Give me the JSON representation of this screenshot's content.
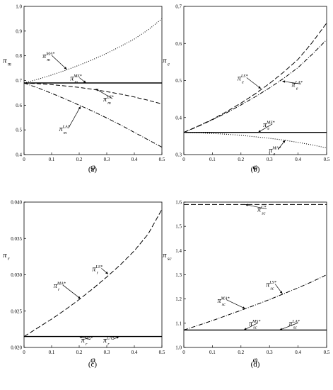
{
  "chart_data": [
    {
      "id": "a",
      "type": "line",
      "panel_label": "(a)",
      "xlabel": "φ",
      "ylabel": "π",
      "ylabel_sub": "m",
      "xlim": [
        0,
        0.5
      ],
      "ylim": [
        0.4,
        1.0
      ],
      "xticks": [
        "0",
        "0.1",
        "0.2",
        "0.3",
        "0.4",
        "0.5"
      ],
      "yticks": [
        "0.4",
        "0.5",
        "0.6",
        "0.7",
        "0.8",
        "0.9",
        "1.0"
      ],
      "x": [
        0,
        0.05,
        0.1,
        0.15,
        0.2,
        0.25,
        0.3,
        0.35,
        0.4,
        0.45,
        0.5
      ],
      "series": [
        {
          "style": "dotted",
          "values": [
            0.69,
            0.705,
            0.722,
            0.741,
            0.762,
            0.785,
            0.81,
            0.838,
            0.868,
            0.905,
            0.95
          ]
        },
        {
          "style": "solid",
          "values": [
            0.69,
            0.69,
            0.69,
            0.69,
            0.69,
            0.69,
            0.69,
            0.69,
            0.69,
            0.69,
            0.69
          ]
        },
        {
          "style": "dashed",
          "values": [
            0.69,
            0.687,
            0.683,
            0.678,
            0.672,
            0.664,
            0.655,
            0.645,
            0.633,
            0.62,
            0.605
          ]
        },
        {
          "style": "dashdot",
          "values": [
            0.69,
            0.67,
            0.648,
            0.625,
            0.6,
            0.575,
            0.548,
            0.52,
            0.49,
            0.46,
            0.43
          ]
        }
      ],
      "annotations": [
        {
          "base": "π",
          "sub": "m",
          "sup": "MA*",
          "tx": 0.08,
          "ty": 0.79,
          "x": 0.155,
          "y": 0.745
        },
        {
          "base": "π",
          "sub": "m",
          "sup": "MS*",
          "tx": 0.18,
          "ty": 0.7,
          "x": 0.225,
          "y": 0.69
        },
        {
          "base": "π",
          "sub": "m",
          "sup": "LS*",
          "tx": 0.3,
          "ty": 0.615,
          "x": 0.26,
          "y": 0.666
        },
        {
          "base": "π",
          "sub": "m",
          "sup": "LA*",
          "tx": 0.14,
          "ty": 0.495,
          "x": 0.205,
          "y": 0.595
        }
      ]
    },
    {
      "id": "b",
      "type": "line",
      "panel_label": "(b)",
      "xlabel": "φ",
      "ylabel": "π",
      "ylabel_sub": "e",
      "xlim": [
        0,
        0.5
      ],
      "ylim": [
        0.3,
        0.7
      ],
      "xticks": [
        "0",
        "0.1",
        "0.2",
        "0.3",
        "0.4",
        "0.5"
      ],
      "yticks": [
        "0.3",
        "0.4",
        "0.5",
        "0.6",
        "0.7"
      ],
      "x": [
        0,
        0.05,
        0.1,
        0.15,
        0.2,
        0.25,
        0.3,
        0.35,
        0.4,
        0.45,
        0.5
      ],
      "series": [
        {
          "style": "longdash",
          "values": [
            0.36,
            0.377,
            0.395,
            0.416,
            0.439,
            0.464,
            0.492,
            0.523,
            0.557,
            0.603,
            0.655
          ]
        },
        {
          "style": "dashdot",
          "values": [
            0.36,
            0.376,
            0.394,
            0.413,
            0.434,
            0.456,
            0.48,
            0.506,
            0.535,
            0.571,
            0.61
          ]
        },
        {
          "style": "solid",
          "values": [
            0.36,
            0.36,
            0.36,
            0.36,
            0.36,
            0.36,
            0.36,
            0.36,
            0.36,
            0.36,
            0.36
          ]
        },
        {
          "style": "dotted",
          "values": [
            0.36,
            0.359,
            0.357,
            0.355,
            0.352,
            0.348,
            0.344,
            0.339,
            0.333,
            0.326,
            0.318
          ]
        }
      ],
      "annotations": [
        {
          "base": "π",
          "sub": "e",
          "sup": "LS*",
          "tx": 0.2,
          "ty": 0.5,
          "x": 0.27,
          "y": 0.478
        },
        {
          "base": "π",
          "sub": "e",
          "sup": "LA*",
          "tx": 0.39,
          "ty": 0.483,
          "x": 0.345,
          "y": 0.498
        },
        {
          "base": "π",
          "sub": "e",
          "sup": "MS*",
          "tx": 0.29,
          "ty": 0.375,
          "x": 0.26,
          "y": 0.36
        },
        {
          "base": "π",
          "sub": "e",
          "sup": "MA*",
          "tx": 0.31,
          "ty": 0.306,
          "x": 0.355,
          "y": 0.339
        }
      ]
    },
    {
      "id": "c",
      "type": "line",
      "panel_label": "(c)",
      "xlabel": "φ",
      "ylabel": "π",
      "ylabel_sub": "r",
      "xlim": [
        0,
        0.5
      ],
      "ylim": [
        0.02,
        0.04
      ],
      "xticks": [
        "0",
        "0.1",
        "0.2",
        "0.3",
        "0.4",
        "0.5"
      ],
      "yticks": [
        "0.020",
        "0.025",
        "0.030",
        "0.035",
        "0.040"
      ],
      "x": [
        0,
        0.05,
        0.1,
        0.15,
        0.2,
        0.25,
        0.3,
        0.35,
        0.4,
        0.45,
        0.5
      ],
      "series": [
        {
          "style": "longdash",
          "values": [
            0.0215,
            0.0227,
            0.0239,
            0.0252,
            0.0266,
            0.0281,
            0.0297,
            0.0314,
            0.0333,
            0.0356,
            0.039
          ]
        },
        {
          "style": "solid",
          "values": [
            0.0215,
            0.0215,
            0.0215,
            0.0215,
            0.0215,
            0.0215,
            0.0215,
            0.0215,
            0.0215,
            0.0215,
            0.0215
          ]
        }
      ],
      "annotations": [
        {
          "base": "π",
          "sub": "r",
          "sup": "LS*",
          "tx": 0.26,
          "ty": 0.0305,
          "x": 0.305,
          "y": 0.0301
        },
        {
          "base": "π",
          "sub": "r",
          "sup": "MA*",
          "tx": 0.12,
          "ty": 0.0282,
          "x": 0.205,
          "y": 0.0267
        },
        {
          "base": "π",
          "sub": "r",
          "sup": "MS*",
          "tx": 0.22,
          "ty": 0.0207,
          "x": 0.2,
          "y": 0.0215
        },
        {
          "base": "π",
          "sub": "r",
          "sup": "LA*",
          "tx": 0.3,
          "ty": 0.0207,
          "x": 0.345,
          "y": 0.0215
        }
      ]
    },
    {
      "id": "d",
      "type": "line",
      "panel_label": "(d)",
      "xlabel": "φ",
      "ylabel": "π",
      "ylabel_sub": "sc",
      "xlim": [
        0,
        0.5
      ],
      "ylim": [
        1.0,
        1.6
      ],
      "xticks": [
        "0",
        "0.1",
        "0.2",
        "0.3",
        "0.4",
        "0.5"
      ],
      "yticks": [
        "1.0",
        "1.1",
        "1.2",
        "1.3",
        "1.4",
        "1.5",
        "1.6"
      ],
      "x": [
        0,
        0.05,
        0.1,
        0.15,
        0.2,
        0.25,
        0.3,
        0.35,
        0.4,
        0.45,
        0.5
      ],
      "series": [
        {
          "style": "longdash",
          "values": [
            1.59,
            1.59,
            1.59,
            1.59,
            1.59,
            1.59,
            1.59,
            1.59,
            1.59,
            1.59,
            1.59
          ]
        },
        {
          "style": "dashdot",
          "values": [
            1.072,
            1.091,
            1.111,
            1.132,
            1.153,
            1.175,
            1.198,
            1.222,
            1.246,
            1.272,
            1.3
          ]
        },
        {
          "style": "solid",
          "values": [
            1.072,
            1.072,
            1.072,
            1.072,
            1.072,
            1.072,
            1.072,
            1.072,
            1.072,
            1.072,
            1.072
          ]
        }
      ],
      "annotations": [
        {
          "base": "π",
          "sub": "sc",
          "sup": "C*",
          "tx": 0.27,
          "ty": 1.56,
          "x": 0.215,
          "y": 1.59
        },
        {
          "base": "π",
          "sub": "sc",
          "sup": "LS*",
          "tx": 0.3,
          "ty": 1.25,
          "x": 0.345,
          "y": 1.222
        },
        {
          "base": "π",
          "sub": "sc",
          "sup": "MA*",
          "tx": 0.13,
          "ty": 1.185,
          "x": 0.215,
          "y": 1.16
        },
        {
          "base": "π",
          "sub": "sc",
          "sup": "MS*",
          "tx": 0.24,
          "ty": 1.09,
          "x": 0.21,
          "y": 1.072
        },
        {
          "base": "π",
          "sub": "sc",
          "sup": "LA*",
          "tx": 0.38,
          "ty": 1.09,
          "x": 0.335,
          "y": 1.072
        }
      ]
    }
  ]
}
